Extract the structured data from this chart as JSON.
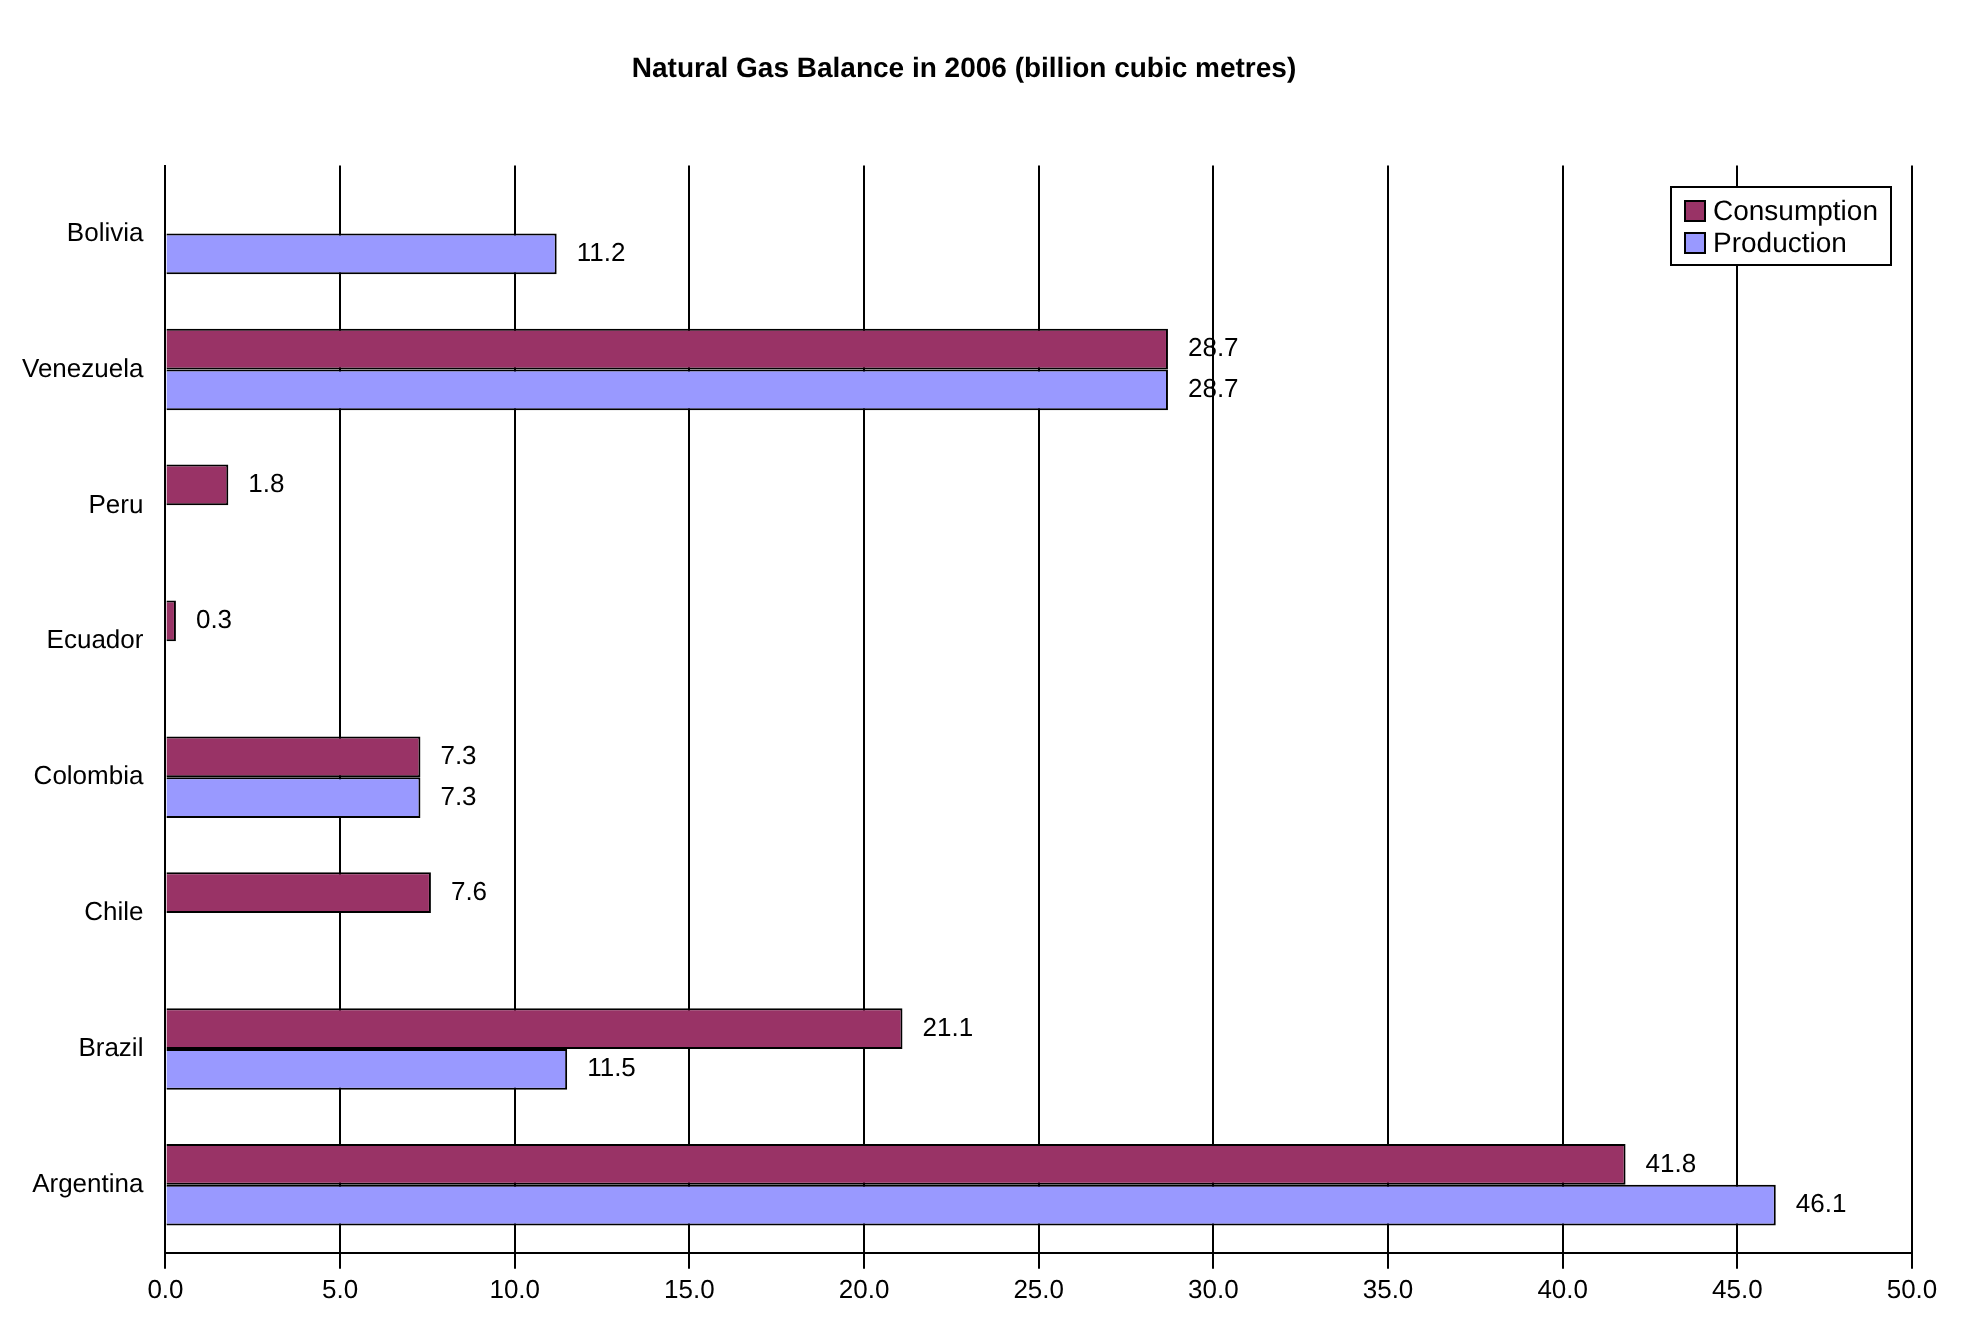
{
  "chart_data": {
    "type": "bar",
    "orientation": "horizontal",
    "title": "Natural Gas Balance in 2006 (billion cubic metres)",
    "categories": [
      "Bolivia",
      "Venezuela",
      "Peru",
      "Ecuador",
      "Colombia",
      "Chile",
      "Brazil",
      "Argentina"
    ],
    "series": [
      {
        "name": "Consumption",
        "color": "#993366",
        "values": [
          null,
          28.7,
          1.8,
          0.3,
          7.3,
          7.6,
          21.1,
          41.8
        ]
      },
      {
        "name": "Production",
        "color": "#9999ff",
        "values": [
          11.2,
          28.7,
          null,
          null,
          7.3,
          null,
          11.5,
          46.1
        ]
      }
    ],
    "xlim": [
      0,
      50
    ],
    "xticks": [
      {
        "value": 0,
        "label": "0.0"
      },
      {
        "value": 5,
        "label": "5.0"
      },
      {
        "value": 10,
        "label": "10.0"
      },
      {
        "value": 15,
        "label": "15.0"
      },
      {
        "value": 20,
        "label": "20.0"
      },
      {
        "value": 25,
        "label": "25.0"
      },
      {
        "value": 30,
        "label": "30.0"
      },
      {
        "value": 35,
        "label": "35.0"
      },
      {
        "value": 40,
        "label": "40.0"
      },
      {
        "value": 45,
        "label": "45.0"
      },
      {
        "value": 50,
        "label": "50.0"
      }
    ],
    "grid": "x",
    "legend": "top right",
    "data_labels": true
  }
}
